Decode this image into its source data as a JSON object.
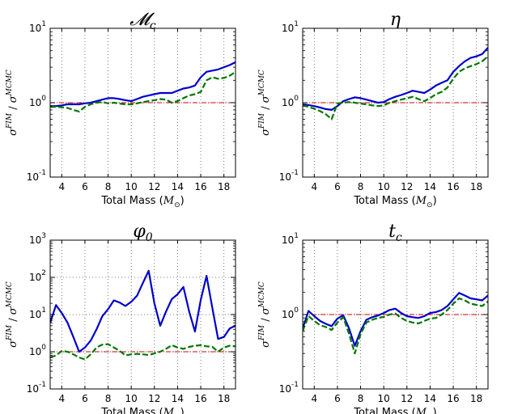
{
  "chart_data": [
    {
      "type": "line",
      "title": "𝓜c",
      "title_main": "𝓜",
      "title_sub": "c",
      "xlabel": "Total Mass (M⊙)",
      "xlabel_text": "Total Mass (",
      "xlabel_var": "M",
      "xlabel_sub": "⊙",
      "xlabel_close": ")",
      "ylabel": "σFIM / σMCMC",
      "ylabel_sigma": "σ",
      "ylabel_sup1": "FIM",
      "ylabel_slash": "/",
      "ylabel_sup2": "MCMC",
      "xlim": [
        3,
        19
      ],
      "ylim_log10": [
        -1,
        1
      ],
      "xticks": [
        "4",
        "6",
        "8",
        "10",
        "12",
        "14",
        "16",
        "18"
      ],
      "yticks": [
        {
          "base": "10",
          "exp": "-1"
        },
        {
          "base": "10",
          "exp": "0"
        },
        {
          "base": "10",
          "exp": "1"
        }
      ],
      "reference_line": 1.0,
      "series": [
        {
          "name": "solid",
          "color": "#0000cc",
          "style": "solid",
          "x": [
            3,
            3.5,
            4,
            4.5,
            5,
            5.5,
            6,
            6.5,
            7,
            7.5,
            8,
            8.5,
            9,
            9.5,
            10,
            10.5,
            11,
            11.5,
            12,
            12.5,
            13,
            13.5,
            14,
            14.5,
            15,
            15.5,
            16,
            16.5,
            17,
            17.5,
            18,
            18.5,
            19
          ],
          "values": [
            0.9,
            0.9,
            0.92,
            0.95,
            0.95,
            0.95,
            0.98,
            1.0,
            1.05,
            1.1,
            1.15,
            1.15,
            1.12,
            1.08,
            1.05,
            1.12,
            1.2,
            1.25,
            1.3,
            1.35,
            1.35,
            1.35,
            1.45,
            1.55,
            1.6,
            1.7,
            2.2,
            2.6,
            2.7,
            2.8,
            3.0,
            3.2,
            3.5
          ]
        },
        {
          "name": "dashed",
          "color": "#007700",
          "style": "dashed",
          "x": [
            3,
            3.5,
            4,
            4.5,
            5,
            5.5,
            6,
            6.5,
            7,
            7.5,
            8,
            8.5,
            9,
            9.5,
            10,
            10.5,
            11,
            11.5,
            12,
            12.5,
            13,
            13.5,
            14,
            14.5,
            15,
            15.5,
            16,
            16.5,
            17,
            17.5,
            18,
            18.5,
            19
          ],
          "values": [
            0.88,
            0.88,
            0.87,
            0.85,
            0.8,
            0.76,
            0.88,
            0.95,
            1.0,
            1.02,
            0.98,
            1.0,
            0.97,
            0.95,
            0.95,
            0.98,
            1.02,
            1.05,
            1.08,
            1.12,
            1.1,
            1.0,
            1.05,
            1.15,
            1.25,
            1.3,
            1.4,
            2.0,
            2.2,
            2.1,
            2.15,
            2.3,
            2.6
          ]
        }
      ]
    },
    {
      "type": "line",
      "title": "η",
      "title_main": "η",
      "title_sub": "",
      "xlabel": "Total Mass (M⊙)",
      "xlabel_text": "Total Mass (",
      "xlabel_var": "M",
      "xlabel_sub": "⊙",
      "xlabel_close": ")",
      "ylabel": "σFIM / σMCMC",
      "ylabel_sigma": "σ",
      "ylabel_sup1": "FIM",
      "ylabel_slash": "/",
      "ylabel_sup2": "MCMC",
      "xlim": [
        3,
        19
      ],
      "ylim_log10": [
        -1,
        1
      ],
      "xticks": [
        "4",
        "6",
        "8",
        "10",
        "12",
        "14",
        "16",
        "18"
      ],
      "yticks": [
        {
          "base": "10",
          "exp": "-1"
        },
        {
          "base": "10",
          "exp": "0"
        },
        {
          "base": "10",
          "exp": "1"
        }
      ],
      "reference_line": 1.0,
      "series": [
        {
          "name": "solid",
          "color": "#0000cc",
          "style": "solid",
          "x": [
            3,
            3.5,
            4,
            4.5,
            5,
            5.5,
            6,
            6.5,
            7,
            7.5,
            8,
            8.5,
            9,
            9.5,
            10,
            10.5,
            11,
            11.5,
            12,
            12.5,
            13,
            13.5,
            14,
            14.5,
            15,
            15.5,
            16,
            16.5,
            17,
            17.5,
            18,
            18.5,
            19
          ],
          "values": [
            0.95,
            0.93,
            0.9,
            0.86,
            0.82,
            0.8,
            0.9,
            1.05,
            1.12,
            1.18,
            1.15,
            1.1,
            1.05,
            1.0,
            1.02,
            1.12,
            1.2,
            1.27,
            1.35,
            1.45,
            1.4,
            1.35,
            1.5,
            1.7,
            1.85,
            2.0,
            2.6,
            3.1,
            3.6,
            4.0,
            4.2,
            4.5,
            5.5
          ]
        },
        {
          "name": "dashed",
          "color": "#007700",
          "style": "dashed",
          "x": [
            3,
            3.5,
            4,
            4.5,
            5,
            5.5,
            6,
            6.5,
            7,
            7.5,
            8,
            8.5,
            9,
            9.5,
            10,
            10.5,
            11,
            11.5,
            12,
            12.5,
            13,
            13.5,
            14,
            14.5,
            15,
            15.5,
            16,
            16.5,
            17,
            17.5,
            18,
            18.5,
            19
          ],
          "values": [
            0.92,
            0.88,
            0.83,
            0.77,
            0.7,
            0.6,
            0.98,
            1.0,
            1.02,
            1.0,
            0.97,
            0.95,
            0.92,
            0.9,
            0.92,
            1.0,
            1.05,
            1.1,
            1.15,
            1.2,
            1.12,
            1.05,
            1.15,
            1.3,
            1.4,
            1.6,
            2.1,
            2.6,
            2.9,
            3.1,
            3.3,
            3.6,
            4.2
          ]
        }
      ]
    },
    {
      "type": "line",
      "title": "φ0",
      "title_main": "φ",
      "title_sub": "0",
      "xlabel": "Total Mass (M⊙)",
      "xlabel_text": "Total Mass (",
      "xlabel_var": "M",
      "xlabel_sub": "⊙",
      "xlabel_close": ")",
      "ylabel": "σFIM / σMCMC",
      "ylabel_sigma": "σ",
      "ylabel_sup1": "FIM",
      "ylabel_slash": "/",
      "ylabel_sup2": "MCMC",
      "xlim": [
        3,
        19
      ],
      "ylim_log10": [
        -1,
        3
      ],
      "xticks": [
        "4",
        "6",
        "8",
        "10",
        "12",
        "14",
        "16",
        "18"
      ],
      "yticks": [
        {
          "base": "10",
          "exp": "-1"
        },
        {
          "base": "10",
          "exp": "0"
        },
        {
          "base": "10",
          "exp": "1"
        },
        {
          "base": "10",
          "exp": "2"
        },
        {
          "base": "10",
          "exp": "3"
        }
      ],
      "reference_line": 1.0,
      "series": [
        {
          "name": "solid",
          "color": "#0000cc",
          "style": "solid",
          "x": [
            3,
            3.5,
            4,
            4.5,
            5,
            5.5,
            6,
            6.5,
            7,
            7.5,
            8,
            8.5,
            9,
            9.5,
            10,
            10.5,
            11,
            11.5,
            12,
            12.5,
            13,
            13.5,
            14,
            14.5,
            15,
            15.5,
            16,
            16.5,
            17,
            17.5,
            18,
            18.5,
            19
          ],
          "values": [
            6,
            18,
            11,
            6,
            2.5,
            1.0,
            1.3,
            2.0,
            4,
            9,
            14,
            24,
            21,
            17,
            22,
            32,
            70,
            150,
            20,
            5,
            12,
            26,
            35,
            55,
            12,
            3.5,
            25,
            110,
            15,
            2.2,
            2.5,
            4.2,
            5
          ]
        },
        {
          "name": "dashed",
          "color": "#007700",
          "style": "dashed",
          "x": [
            3,
            3.5,
            4,
            4.5,
            5,
            5.5,
            6,
            6.5,
            7,
            7.5,
            8,
            8.5,
            9,
            9.5,
            10,
            10.5,
            11,
            11.5,
            12,
            12.5,
            13,
            13.5,
            14,
            14.5,
            15,
            15.5,
            16,
            16.5,
            17,
            17.5,
            18,
            18.5,
            19
          ],
          "values": [
            0.7,
            0.8,
            1.05,
            1.0,
            0.85,
            0.7,
            0.62,
            0.85,
            1.3,
            1.55,
            1.6,
            1.3,
            1.05,
            0.8,
            0.85,
            0.88,
            0.85,
            0.82,
            0.9,
            1.0,
            1.2,
            1.5,
            1.3,
            1.2,
            1.35,
            1.45,
            1.5,
            1.4,
            1.35,
            1.0,
            1.3,
            1.45,
            1.4
          ]
        }
      ]
    },
    {
      "type": "line",
      "title": "tc",
      "title_main": "t",
      "title_sub": "c",
      "xlabel": "Total Mass (M⊙)",
      "xlabel_text": "Total Mass (",
      "xlabel_var": "M",
      "xlabel_sub": "⊙",
      "xlabel_close": ")",
      "ylabel": "σFIM / σMCMC",
      "ylabel_sigma": "σ",
      "ylabel_sup1": "FIM",
      "ylabel_slash": "/",
      "ylabel_sup2": "MCMC",
      "xlim": [
        3,
        19
      ],
      "ylim_log10": [
        -1,
        1
      ],
      "xticks": [
        "4",
        "6",
        "8",
        "10",
        "12",
        "14",
        "16",
        "18"
      ],
      "yticks": [
        {
          "base": "10",
          "exp": "-1"
        },
        {
          "base": "10",
          "exp": "0"
        },
        {
          "base": "10",
          "exp": "1"
        }
      ],
      "reference_line": 1.0,
      "series": [
        {
          "name": "solid",
          "color": "#0000cc",
          "style": "solid",
          "x": [
            3,
            3.5,
            4,
            4.5,
            5,
            5.5,
            6,
            6.5,
            7,
            7.5,
            8,
            8.5,
            9,
            9.5,
            10,
            10.5,
            11,
            11.5,
            12,
            12.5,
            13,
            13.5,
            14,
            14.5,
            15,
            15.5,
            16,
            16.5,
            17,
            17.5,
            18,
            18.5,
            19
          ],
          "values": [
            0.65,
            1.12,
            0.95,
            0.82,
            0.75,
            0.7,
            0.88,
            0.98,
            0.65,
            0.38,
            0.6,
            0.85,
            0.92,
            0.97,
            1.05,
            1.15,
            1.2,
            1.05,
            0.95,
            0.92,
            0.9,
            0.95,
            1.05,
            1.08,
            1.15,
            1.3,
            1.6,
            1.95,
            1.8,
            1.65,
            1.6,
            1.55,
            1.8
          ]
        },
        {
          "name": "dashed",
          "color": "#007700",
          "style": "dashed",
          "x": [
            3,
            3.5,
            4,
            4.5,
            5,
            5.5,
            6,
            6.5,
            7,
            7.5,
            8,
            8.5,
            9,
            9.5,
            10,
            10.5,
            11,
            11.5,
            12,
            12.5,
            13,
            13.5,
            14,
            14.5,
            15,
            15.5,
            16,
            16.5,
            17,
            17.5,
            18,
            18.5,
            19
          ],
          "values": [
            0.6,
            0.95,
            0.82,
            0.72,
            0.68,
            0.62,
            0.78,
            0.92,
            0.55,
            0.3,
            0.55,
            0.78,
            0.85,
            0.9,
            0.93,
            1.0,
            1.03,
            0.9,
            0.82,
            0.78,
            0.76,
            0.82,
            0.88,
            0.9,
            1.0,
            1.15,
            1.4,
            1.65,
            1.55,
            1.4,
            1.35,
            1.3,
            1.5
          ]
        }
      ]
    }
  ]
}
